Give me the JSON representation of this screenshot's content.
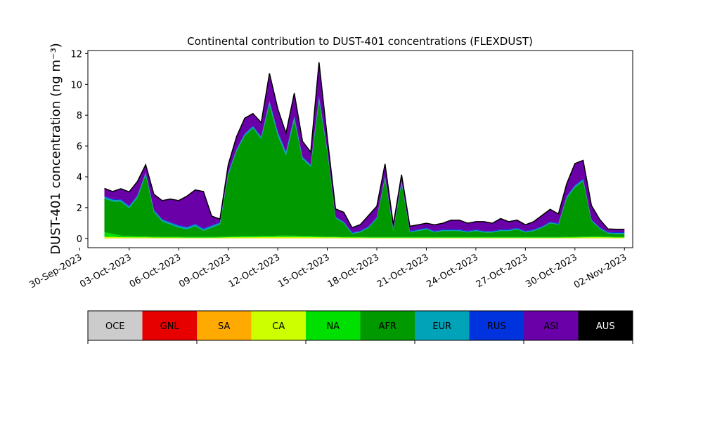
{
  "chart_data": {
    "type": "area",
    "stacked": true,
    "title": "Continental contribution to DUST-401 concentrations (FLEXDUST)",
    "ylabel": "DUST-401 concentration (ng m⁻³)",
    "xlabel": "",
    "ylim": [
      -0.6,
      12.2
    ],
    "xlim": [
      "2023-09-30T12:00",
      "2023-11-02T12:00"
    ],
    "y_ticks": [
      "0",
      "2",
      "4",
      "6",
      "8",
      "10",
      "12"
    ],
    "x_ticks": [
      "30-Sep-2023",
      "03-Oct-2023",
      "06-Oct-2023",
      "09-Oct-2023",
      "12-Oct-2023",
      "15-Oct-2023",
      "18-Oct-2023",
      "21-Oct-2023",
      "24-Oct-2023",
      "27-Oct-2023",
      "30-Oct-2023",
      "02-Nov-2023"
    ],
    "grid": false,
    "legend_placement": "bottom",
    "x": [
      "2023-10-01T12:00",
      "2023-10-02T00:00",
      "2023-10-02T12:00",
      "2023-10-03T00:00",
      "2023-10-03T12:00",
      "2023-10-04T00:00",
      "2023-10-04T12:00",
      "2023-10-05T00:00",
      "2023-10-05T12:00",
      "2023-10-06T00:00",
      "2023-10-06T12:00",
      "2023-10-07T00:00",
      "2023-10-07T12:00",
      "2023-10-08T00:00",
      "2023-10-08T12:00",
      "2023-10-09T00:00",
      "2023-10-09T12:00",
      "2023-10-10T00:00",
      "2023-10-10T12:00",
      "2023-10-11T00:00",
      "2023-10-11T12:00",
      "2023-10-12T00:00",
      "2023-10-12T12:00",
      "2023-10-13T00:00",
      "2023-10-13T12:00",
      "2023-10-14T00:00",
      "2023-10-14T12:00",
      "2023-10-15T00:00",
      "2023-10-15T12:00",
      "2023-10-16T00:00",
      "2023-10-16T12:00",
      "2023-10-17T00:00",
      "2023-10-17T12:00",
      "2023-10-18T00:00",
      "2023-10-18T12:00",
      "2023-10-19T00:00",
      "2023-10-19T12:00",
      "2023-10-20T00:00",
      "2023-10-20T12:00",
      "2023-10-21T00:00",
      "2023-10-21T12:00",
      "2023-10-22T00:00",
      "2023-10-22T12:00",
      "2023-10-23T00:00",
      "2023-10-23T12:00",
      "2023-10-24T00:00",
      "2023-10-24T12:00",
      "2023-10-25T00:00",
      "2023-10-25T12:00",
      "2023-10-26T00:00",
      "2023-10-26T12:00",
      "2023-10-27T00:00",
      "2023-10-27T12:00",
      "2023-10-28T00:00",
      "2023-10-28T12:00",
      "2023-10-29T00:00",
      "2023-10-29T12:00",
      "2023-10-30T00:00",
      "2023-10-30T12:00",
      "2023-10-31T00:00",
      "2023-10-31T12:00",
      "2023-11-01T00:00",
      "2023-11-01T12:00",
      "2023-11-02T00:00"
    ],
    "series": [
      {
        "name": "OCE",
        "color": "#cccccc",
        "values": [
          0,
          0,
          0,
          0,
          0,
          0,
          0,
          0,
          0,
          0,
          0,
          0,
          0,
          0,
          0,
          0,
          0,
          0,
          0,
          0,
          0,
          0,
          0,
          0,
          0,
          0,
          0,
          0,
          0,
          0,
          0,
          0,
          0,
          0,
          0,
          0,
          0,
          0,
          0,
          0,
          0,
          0,
          0,
          0,
          0,
          0,
          0,
          0,
          0,
          0,
          0,
          0,
          0,
          0,
          0,
          0,
          0,
          0,
          0,
          0,
          0,
          0,
          0,
          0
        ]
      },
      {
        "name": "GNL",
        "color": "#e60000",
        "values": [
          0,
          0,
          0,
          0,
          0,
          0,
          0,
          0,
          0,
          0,
          0,
          0,
          0,
          0,
          0,
          0,
          0,
          0,
          0,
          0,
          0,
          0,
          0,
          0,
          0,
          0,
          0,
          0,
          0,
          0,
          0,
          0,
          0,
          0,
          0,
          0,
          0,
          0,
          0,
          0,
          0,
          0,
          0,
          0,
          0,
          0,
          0,
          0,
          0,
          0,
          0,
          0,
          0,
          0,
          0,
          0,
          0,
          0,
          0,
          0,
          0,
          0,
          0,
          0
        ]
      },
      {
        "name": "SA",
        "color": "#ffaa00",
        "values": [
          0.02,
          0.02,
          0.02,
          0.02,
          0.02,
          0.02,
          0.02,
          0.02,
          0.02,
          0.02,
          0.02,
          0.02,
          0.02,
          0.02,
          0.02,
          0.02,
          0.02,
          0.02,
          0.02,
          0.02,
          0.02,
          0.02,
          0.02,
          0.02,
          0.02,
          0.02,
          0.02,
          0.02,
          0.02,
          0.02,
          0.02,
          0.02,
          0.02,
          0.02,
          0.02,
          0.02,
          0.02,
          0.02,
          0.02,
          0.02,
          0.02,
          0.02,
          0.02,
          0.02,
          0.02,
          0.02,
          0.02,
          0.02,
          0.02,
          0.02,
          0.02,
          0.02,
          0.02,
          0.02,
          0.02,
          0.02,
          0.02,
          0.02,
          0.02,
          0.02,
          0.02,
          0.02,
          0.02,
          0.02
        ]
      },
      {
        "name": "CA",
        "color": "#cdff00",
        "values": [
          0.08,
          0.08,
          0.06,
          0.05,
          0.05,
          0.05,
          0.04,
          0.04,
          0.04,
          0.04,
          0.03,
          0.03,
          0.03,
          0.03,
          0.04,
          0.05,
          0.06,
          0.06,
          0.06,
          0.07,
          0.07,
          0.08,
          0.08,
          0.08,
          0.07,
          0.07,
          0.06,
          0.05,
          0.05,
          0.04,
          0.04,
          0.04,
          0.03,
          0.03,
          0.03,
          0.03,
          0.03,
          0.03,
          0.03,
          0.03,
          0.03,
          0.03,
          0.03,
          0.03,
          0.03,
          0.03,
          0.03,
          0.03,
          0.03,
          0.03,
          0.03,
          0.03,
          0.03,
          0.03,
          0.03,
          0.03,
          0.04,
          0.04,
          0.05,
          0.06,
          0.06,
          0.05,
          0.04,
          0.04
        ]
      },
      {
        "name": "NA",
        "color": "#00e000",
        "values": [
          0.3,
          0.2,
          0.1,
          0.1,
          0.08,
          0.07,
          0.06,
          0.05,
          0.05,
          0.05,
          0.05,
          0.05,
          0.05,
          0.05,
          0.05,
          0.06,
          0.07,
          0.08,
          0.08,
          0.08,
          0.08,
          0.08,
          0.08,
          0.08,
          0.07,
          0.07,
          0.06,
          0.05,
          0.05,
          0.04,
          0.04,
          0.04,
          0.04,
          0.04,
          0.04,
          0.04,
          0.04,
          0.04,
          0.04,
          0.04,
          0.04,
          0.04,
          0.04,
          0.04,
          0.04,
          0.04,
          0.04,
          0.04,
          0.04,
          0.04,
          0.04,
          0.04,
          0.04,
          0.04,
          0.04,
          0.04,
          0.04,
          0.05,
          0.05,
          0.06,
          0.06,
          0.05,
          0.04,
          0.04
        ]
      },
      {
        "name": "AFR",
        "color": "#009900",
        "values": [
          2.2,
          2.1,
          2.2,
          1.8,
          2.5,
          4.0,
          1.6,
          1.0,
          0.8,
          0.6,
          0.5,
          0.7,
          0.4,
          0.6,
          0.8,
          4.0,
          5.5,
          6.5,
          7.0,
          6.3,
          8.5,
          6.5,
          5.2,
          7.5,
          5.0,
          4.5,
          8.8,
          5.5,
          1.2,
          0.9,
          0.2,
          0.3,
          0.6,
          1.2,
          3.8,
          0.4,
          3.5,
          0.3,
          0.4,
          0.5,
          0.3,
          0.4,
          0.4,
          0.4,
          0.3,
          0.4,
          0.3,
          0.3,
          0.4,
          0.4,
          0.5,
          0.3,
          0.4,
          0.6,
          0.9,
          0.8,
          2.5,
          3.2,
          3.6,
          1.0,
          0.5,
          0.2,
          0.2,
          0.2
        ]
      },
      {
        "name": "EUR",
        "color": "#00a3b8",
        "values": [
          0.1,
          0.1,
          0.1,
          0.1,
          0.1,
          0.1,
          0.1,
          0.1,
          0.1,
          0.1,
          0.1,
          0.1,
          0.1,
          0.1,
          0.1,
          0.1,
          0.1,
          0.1,
          0.1,
          0.1,
          0.2,
          0.2,
          0.2,
          0.2,
          0.1,
          0.1,
          0.2,
          0.1,
          0.05,
          0.05,
          0.05,
          0.05,
          0.05,
          0.05,
          0.1,
          0.05,
          0.1,
          0.05,
          0.05,
          0.05,
          0.05,
          0.05,
          0.05,
          0.05,
          0.05,
          0.05,
          0.05,
          0.05,
          0.05,
          0.05,
          0.05,
          0.05,
          0.05,
          0.05,
          0.05,
          0.05,
          0.1,
          0.1,
          0.1,
          0.05,
          0.05,
          0.05,
          0.05,
          0.05
        ]
      },
      {
        "name": "RUS",
        "color": "#0033dd",
        "values": [
          0.05,
          0.05,
          0.05,
          0.05,
          0.05,
          0.05,
          0.05,
          0.05,
          0.05,
          0.05,
          0.05,
          0.05,
          0.05,
          0.05,
          0.05,
          0.05,
          0.05,
          0.05,
          0.05,
          0.05,
          0.05,
          0.05,
          0.05,
          0.05,
          0.05,
          0.05,
          0.1,
          0.05,
          0.05,
          0.05,
          0.05,
          0.05,
          0.05,
          0.05,
          0.05,
          0.05,
          0.05,
          0.05,
          0.05,
          0.05,
          0.05,
          0.05,
          0.05,
          0.05,
          0.05,
          0.05,
          0.05,
          0.05,
          0.05,
          0.05,
          0.05,
          0.05,
          0.05,
          0.05,
          0.05,
          0.05,
          0.05,
          0.05,
          0.05,
          0.05,
          0.05,
          0.05,
          0.05,
          0.05
        ]
      },
      {
        "name": "ASI",
        "color": "#6a00a8",
        "values": [
          0.5,
          0.5,
          0.7,
          0.9,
          0.9,
          0.5,
          1.0,
          1.2,
          1.5,
          1.6,
          2.0,
          2.2,
          2.4,
          0.6,
          0.2,
          0.5,
          0.8,
          1.0,
          0.8,
          0.9,
          1.8,
          1.5,
          1.2,
          1.5,
          1.0,
          0.8,
          2.2,
          0.8,
          0.5,
          0.6,
          0.3,
          0.4,
          0.7,
          0.7,
          0.8,
          0.3,
          0.4,
          0.3,
          0.3,
          0.3,
          0.4,
          0.4,
          0.6,
          0.6,
          0.5,
          0.5,
          0.6,
          0.5,
          0.7,
          0.5,
          0.5,
          0.4,
          0.5,
          0.7,
          0.8,
          0.6,
          0.8,
          1.4,
          1.2,
          0.9,
          0.5,
          0.2,
          0.2,
          0.2
        ]
      }
    ]
  },
  "legend": {
    "items": [
      {
        "label": "OCE",
        "color": "#cccccc"
      },
      {
        "label": "GNL",
        "color": "#e60000"
      },
      {
        "label": "SA",
        "color": "#ffaa00"
      },
      {
        "label": "CA",
        "color": "#cdff00"
      },
      {
        "label": "NA",
        "color": "#00e000"
      },
      {
        "label": "AFR",
        "color": "#009900"
      },
      {
        "label": "EUR",
        "color": "#00a3b8"
      },
      {
        "label": "RUS",
        "color": "#0033dd"
      },
      {
        "label": "ASI",
        "color": "#6a00a8"
      },
      {
        "label": "AUS",
        "color": "#000000"
      }
    ]
  }
}
